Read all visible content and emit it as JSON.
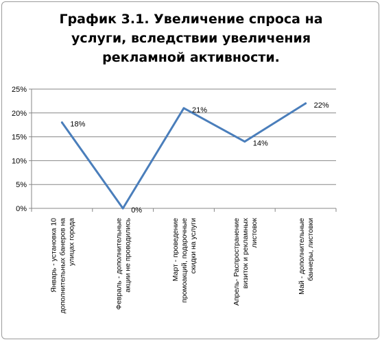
{
  "chart_data": {
    "type": "line",
    "title_lines": [
      "График 3.1. Увеличение спроса на",
      "услуги, вследствии увеличения",
      "рекламной активности."
    ],
    "categories": [
      [
        "Январь - установка 10",
        "дополнительных банеров на",
        "улицах города"
      ],
      [
        "Февраль - дополнительные",
        "акции не проводились"
      ],
      [
        "Март - проведение",
        "промоакций, подарочные",
        "скидки на услуги"
      ],
      [
        "Апрель- Распространение",
        "визиток и рекламных",
        "листовок"
      ],
      [
        "Май - дополнительные",
        "баннеры, листовки"
      ]
    ],
    "values": [
      0.18,
      0.0,
      0.21,
      0.14,
      0.22
    ],
    "data_labels": [
      "18%",
      "0%",
      "21%",
      "14%",
      "22%"
    ],
    "y_ticks": [
      "0%",
      "5%",
      "10%",
      "15%",
      "20%",
      "25%"
    ],
    "ylim": [
      0,
      0.25
    ],
    "grid": true,
    "legend": "none",
    "colors": {
      "line": "#4a7ebb",
      "grid": "#868686",
      "axis": "#868686",
      "text": "#000000"
    }
  }
}
